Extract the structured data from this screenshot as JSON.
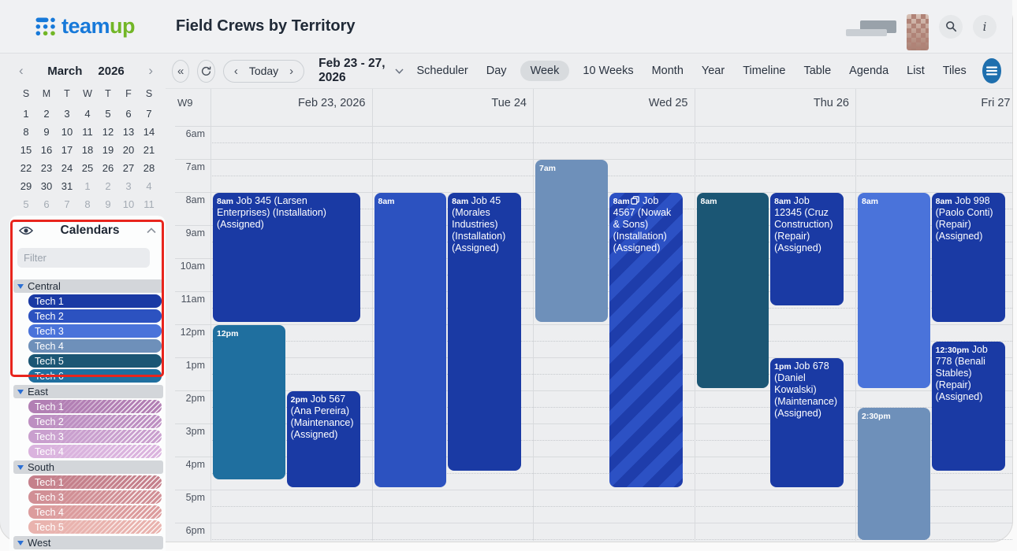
{
  "brand": {
    "blue": "#1779d9",
    "green": "#72b626"
  },
  "annotation": {
    "color": "#e8251d"
  },
  "header": {
    "logo_team": "team",
    "logo_up": "up",
    "title": "Field Crews by Territory",
    "info_label": "i"
  },
  "mini_calendar": {
    "prev": "‹",
    "next": "›",
    "month": "March",
    "year": "2026",
    "weekdays": [
      "S",
      "M",
      "T",
      "W",
      "T",
      "F",
      "S"
    ],
    "days": [
      "1",
      "2",
      "3",
      "4",
      "5",
      "6",
      "7",
      "8",
      "9",
      "10",
      "11",
      "12",
      "13",
      "14",
      "15",
      "16",
      "17",
      "18",
      "19",
      "20",
      "21",
      "22",
      "23",
      "24",
      "25",
      "26",
      "27",
      "28",
      "29",
      "30",
      "31",
      "1",
      "2",
      "3",
      "4",
      "5",
      "6",
      "7",
      "8",
      "9",
      "10",
      "11"
    ],
    "muted_after_index": 30
  },
  "calendars_panel": {
    "title": "Calendars",
    "filter_placeholder": "Filter",
    "groups": [
      {
        "name": "Central",
        "items": [
          {
            "label": "Tech 1",
            "color": "#1a3aa4",
            "hatched": false
          },
          {
            "label": "Tech 2",
            "color": "#2c52c0",
            "hatched": false
          },
          {
            "label": "Tech 3",
            "color": "#4a73da",
            "hatched": false
          },
          {
            "label": "Tech 4",
            "color": "#6e90ba",
            "hatched": false
          },
          {
            "label": "Tech 5",
            "color": "#1b5674",
            "hatched": false
          },
          {
            "label": "Tech 6",
            "color": "#1f6f9f",
            "hatched": false
          }
        ]
      },
      {
        "name": "East",
        "items": [
          {
            "label": "Tech 1",
            "color": "#b27fb4",
            "hatched": true
          },
          {
            "label": "Tech 2",
            "color": "#bd8fc2",
            "hatched": true
          },
          {
            "label": "Tech 3",
            "color": "#c99fce",
            "hatched": true
          },
          {
            "label": "Tech 4",
            "color": "#dab3de",
            "hatched": true
          }
        ]
      },
      {
        "name": "South",
        "items": [
          {
            "label": "Tech 1",
            "color": "#c5808b",
            "hatched": true
          },
          {
            "label": "Tech 3",
            "color": "#d18f95",
            "hatched": true
          },
          {
            "label": "Tech 4",
            "color": "#dc9c9d",
            "hatched": true
          },
          {
            "label": "Tech 5",
            "color": "#e9b3ae",
            "hatched": true
          }
        ]
      },
      {
        "name": "West",
        "items": []
      }
    ]
  },
  "toolbar": {
    "prev_period": "«",
    "nav_prev": "‹",
    "today_label": "Today",
    "nav_next": "›",
    "range_label": "Feb 23 - 27, 2026",
    "views": [
      {
        "label": "Scheduler",
        "active": false
      },
      {
        "label": "Day",
        "active": false
      },
      {
        "label": "Week",
        "active": true
      },
      {
        "label": "10 Weeks",
        "active": false
      },
      {
        "label": "Month",
        "active": false
      },
      {
        "label": "Year",
        "active": false
      },
      {
        "label": "Timeline",
        "active": false
      },
      {
        "label": "Table",
        "active": false
      },
      {
        "label": "Agenda",
        "active": false
      },
      {
        "label": "List",
        "active": false
      },
      {
        "label": "Tiles",
        "active": false
      }
    ]
  },
  "grid": {
    "week_label": "W9",
    "days": [
      {
        "header": "Feb 23, 2026"
      },
      {
        "header": "Tue 24"
      },
      {
        "header": "Wed 25"
      },
      {
        "header": "Thu 26"
      },
      {
        "header": "Fri 27"
      }
    ],
    "times": [
      "6am",
      "7am",
      "8am",
      "9am",
      "10am",
      "11am",
      "12pm",
      "1pm",
      "2pm",
      "3pm",
      "4pm",
      "5pm",
      "6pm"
    ],
    "stripe_colors": [
      "#2c51c4",
      "#1e3dab"
    ],
    "events": [
      {
        "day": 0,
        "lane": "full",
        "start": 8,
        "end": 12,
        "time": "8am",
        "title": "Job 345 (Larsen Enterprises) (Installation) (Assigned)",
        "color": "#1a3aa4",
        "striped": false,
        "copy_icon": false
      },
      {
        "day": 0,
        "lane": "left",
        "start": 12,
        "end": 16.75,
        "time": "12pm",
        "title": "",
        "color": "#1f6f9f",
        "striped": false,
        "copy_icon": false
      },
      {
        "day": 0,
        "lane": "right",
        "start": 14,
        "end": 17,
        "time": "2pm",
        "title": "Job 567 (Ana Pereira) (Maintenance) (Assigned)",
        "color": "#1a3aa4",
        "striped": false,
        "copy_icon": false
      },
      {
        "day": 1,
        "lane": "left",
        "start": 8,
        "end": 17,
        "time": "8am",
        "title": "",
        "color": "#2c52c0",
        "striped": false,
        "copy_icon": false
      },
      {
        "day": 1,
        "lane": "right",
        "start": 8,
        "end": 16.5,
        "time": "8am",
        "title": "Job 45 (Morales Industries) (Installation) (Assigned)",
        "color": "#1a3aa4",
        "striped": false,
        "copy_icon": false
      },
      {
        "day": 2,
        "lane": "left",
        "start": 7,
        "end": 12,
        "time": "7am",
        "title": "",
        "color": "#6e90ba",
        "striped": false,
        "copy_icon": false
      },
      {
        "day": 2,
        "lane": "right",
        "start": 8,
        "end": 17,
        "time": "8am",
        "title": "Job 4567 (Nowak & Sons) (Installation) (Assigned)",
        "color": "#2c52c0",
        "striped": true,
        "copy_icon": true
      },
      {
        "day": 3,
        "lane": "left",
        "start": 8,
        "end": 14,
        "time": "8am",
        "title": "",
        "color": "#1b5674",
        "striped": false,
        "copy_icon": false
      },
      {
        "day": 3,
        "lane": "right",
        "start": 8,
        "end": 11.5,
        "time": "8am",
        "title": "Job 12345 (Cruz Construction) (Repair) (Assigned)",
        "color": "#1a3aa4",
        "striped": false,
        "copy_icon": false
      },
      {
        "day": 3,
        "lane": "right",
        "start": 13,
        "end": 17,
        "time": "1pm",
        "title": "Job 678 (Daniel Kowalski) (Maintenance) (Assigned)",
        "color": "#1a3aa4",
        "striped": false,
        "copy_icon": false
      },
      {
        "day": 4,
        "lane": "left",
        "start": 8,
        "end": 14,
        "time": "8am",
        "title": "",
        "color": "#4a73da",
        "striped": false,
        "copy_icon": false
      },
      {
        "day": 4,
        "lane": "right",
        "start": 8,
        "end": 12,
        "time": "8am",
        "title": "Job 998 (Paolo Conti) (Repair) (Assigned)",
        "color": "#1a3aa4",
        "striped": false,
        "copy_icon": false
      },
      {
        "day": 4,
        "lane": "right",
        "start": 12.5,
        "end": 16.5,
        "time": "12:30pm",
        "title": "Job 778 (Benali Stables) (Repair) (Assigned)",
        "color": "#1a3aa4",
        "striped": false,
        "copy_icon": false
      },
      {
        "day": 4,
        "lane": "left",
        "start": 14.5,
        "end": 18.6,
        "time": "2:30pm",
        "title": "",
        "color": "#6e90ba",
        "striped": false,
        "copy_icon": false
      }
    ]
  }
}
